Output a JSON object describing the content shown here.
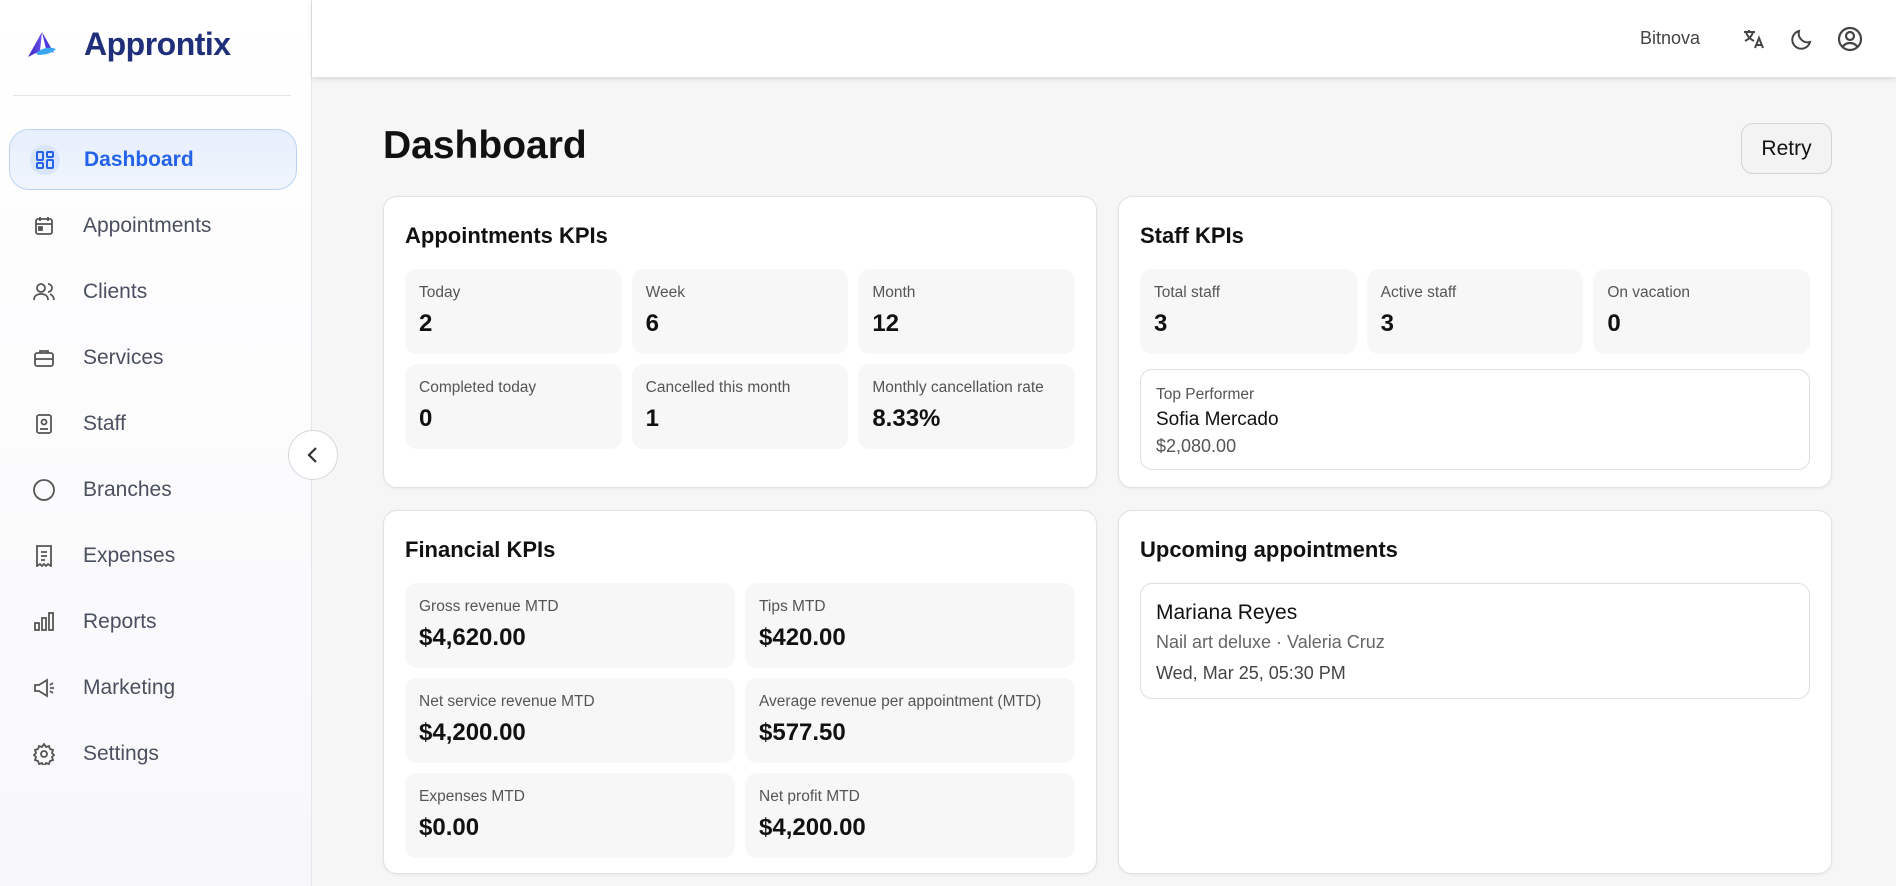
{
  "app": {
    "name": "Approntix"
  },
  "sidebar": {
    "items": [
      {
        "label": "Dashboard",
        "icon": "dashboard-icon",
        "active": true
      },
      {
        "label": "Appointments",
        "icon": "calendar-icon"
      },
      {
        "label": "Clients",
        "icon": "users-icon"
      },
      {
        "label": "Services",
        "icon": "briefcase-icon"
      },
      {
        "label": "Staff",
        "icon": "id-badge-icon"
      },
      {
        "label": "Branches",
        "icon": "circle-icon"
      },
      {
        "label": "Expenses",
        "icon": "receipt-icon"
      },
      {
        "label": "Reports",
        "icon": "bar-chart-icon"
      },
      {
        "label": "Marketing",
        "icon": "megaphone-icon"
      },
      {
        "label": "Settings",
        "icon": "gear-icon"
      }
    ]
  },
  "header": {
    "business": "Bitnova"
  },
  "page": {
    "title": "Dashboard",
    "retry": "Retry"
  },
  "appointments": {
    "title": "Appointments KPIs",
    "tiles": [
      {
        "label": "Today",
        "value": "2"
      },
      {
        "label": "Week",
        "value": "6"
      },
      {
        "label": "Month",
        "value": "12"
      },
      {
        "label": "Completed today",
        "value": "0"
      },
      {
        "label": "Cancelled this month",
        "value": "1"
      },
      {
        "label": "Monthly cancellation rate",
        "value": "8.33%"
      }
    ]
  },
  "staff": {
    "title": "Staff KPIs",
    "tiles": [
      {
        "label": "Total staff",
        "value": "3"
      },
      {
        "label": "Active staff",
        "value": "3"
      },
      {
        "label": "On vacation",
        "value": "0"
      }
    ],
    "top": {
      "label": "Top Performer",
      "name": "Sofia Mercado",
      "amount": "$2,080.00"
    }
  },
  "financial": {
    "title": "Financial KPIs",
    "tiles": [
      {
        "label": "Gross revenue MTD",
        "value": "$4,620.00"
      },
      {
        "label": "Tips MTD",
        "value": "$420.00"
      },
      {
        "label": "Net service revenue MTD",
        "value": "$4,200.00"
      },
      {
        "label": "Average revenue per appointment (MTD)",
        "value": "$577.50"
      },
      {
        "label": "Expenses MTD",
        "value": "$0.00"
      },
      {
        "label": "Net profit MTD",
        "value": "$4,200.00"
      }
    ]
  },
  "upcoming": {
    "title": "Upcoming appointments",
    "items": [
      {
        "client": "Mariana Reyes",
        "detail": "Nail art deluxe · Valeria Cruz",
        "when": "Wed, Mar 25, 05:30 PM"
      }
    ]
  }
}
